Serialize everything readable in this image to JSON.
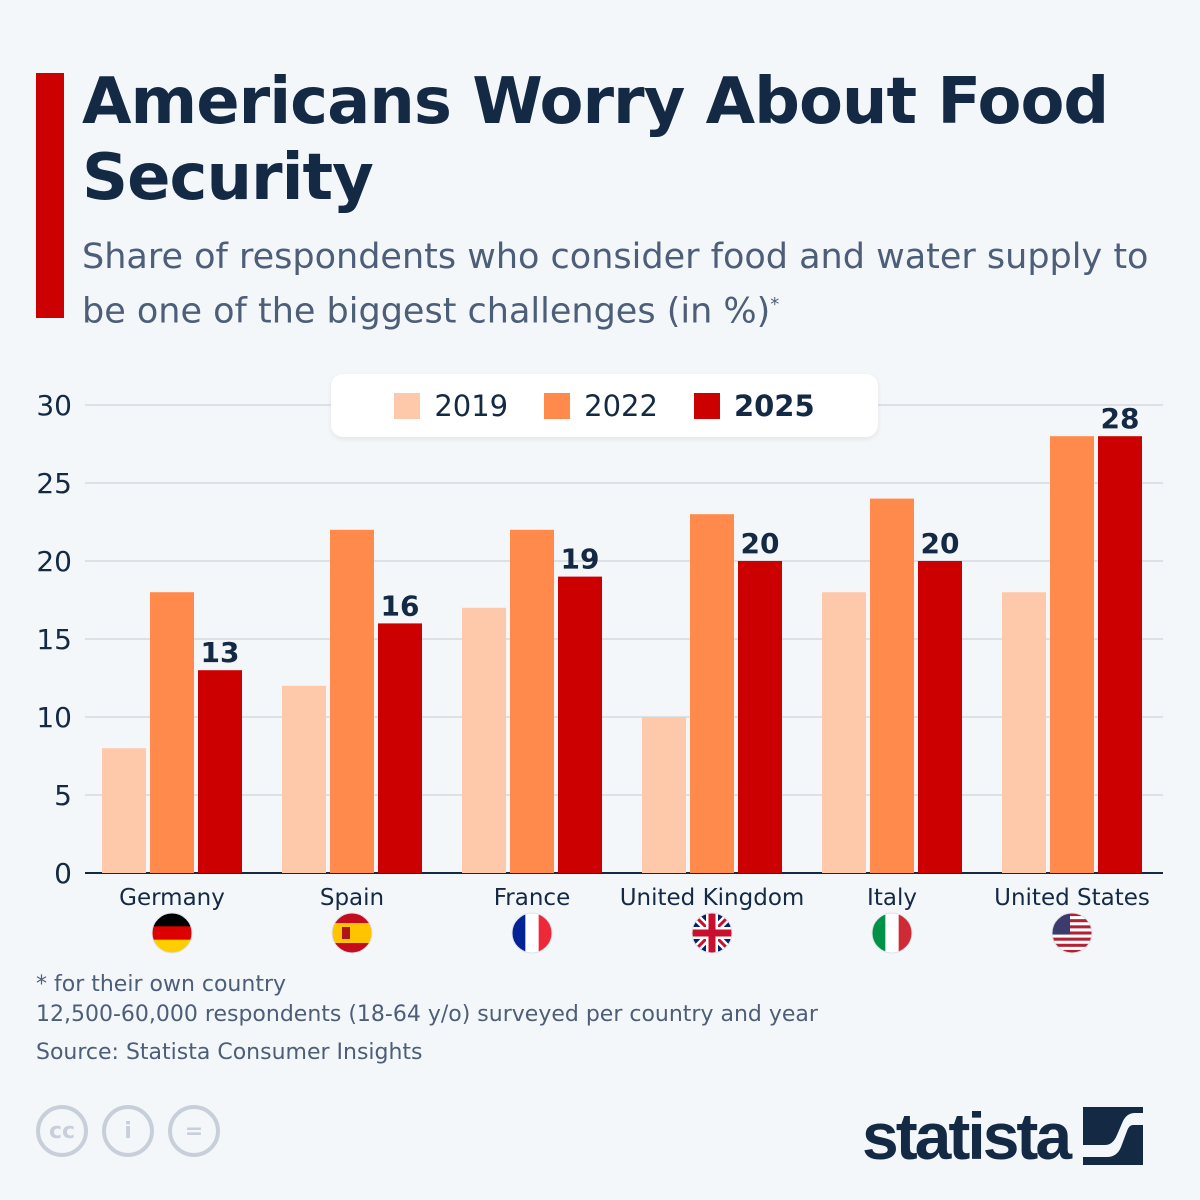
{
  "title": "Americans Worry About Food Security",
  "subtitle": "Share of respondents who consider food and water supply to be one of the biggest challenges (in %)",
  "subtitle_mark": "*",
  "colors": {
    "2019": "#fdc9aa",
    "2022": "#ff8a4c",
    "2025": "#cc0000",
    "accent": "#cc0000"
  },
  "chart_data": {
    "type": "bar",
    "categories": [
      "Germany",
      "Spain",
      "France",
      "United Kingdom",
      "Italy",
      "United States"
    ],
    "series": [
      {
        "name": "2019",
        "values": [
          8,
          12,
          17,
          10,
          18,
          18
        ]
      },
      {
        "name": "2022",
        "values": [
          18,
          22,
          22,
          23,
          24,
          28
        ]
      },
      {
        "name": "2025",
        "values": [
          13,
          16,
          19,
          20,
          20,
          28
        ]
      }
    ],
    "data_labels_series": "2025",
    "ylim": [
      0,
      30
    ],
    "yticks": [
      "0",
      "5",
      "10",
      "15",
      "20",
      "25",
      "30"
    ],
    "grid": true,
    "legend": "top-center",
    "flags": [
      "germany-flag-icon",
      "spain-flag-icon",
      "france-flag-icon",
      "uk-flag-icon",
      "italy-flag-icon",
      "us-flag-icon"
    ]
  },
  "notes": {
    "footnote": "* for their own country",
    "sample": "12,500-60,000 respondents (18-64 y/o) surveyed per country and year",
    "source": "Source: Statista Consumer Insights"
  },
  "license": {
    "cc": "cc",
    "by": "i",
    "nd": "="
  },
  "logo": "statista"
}
